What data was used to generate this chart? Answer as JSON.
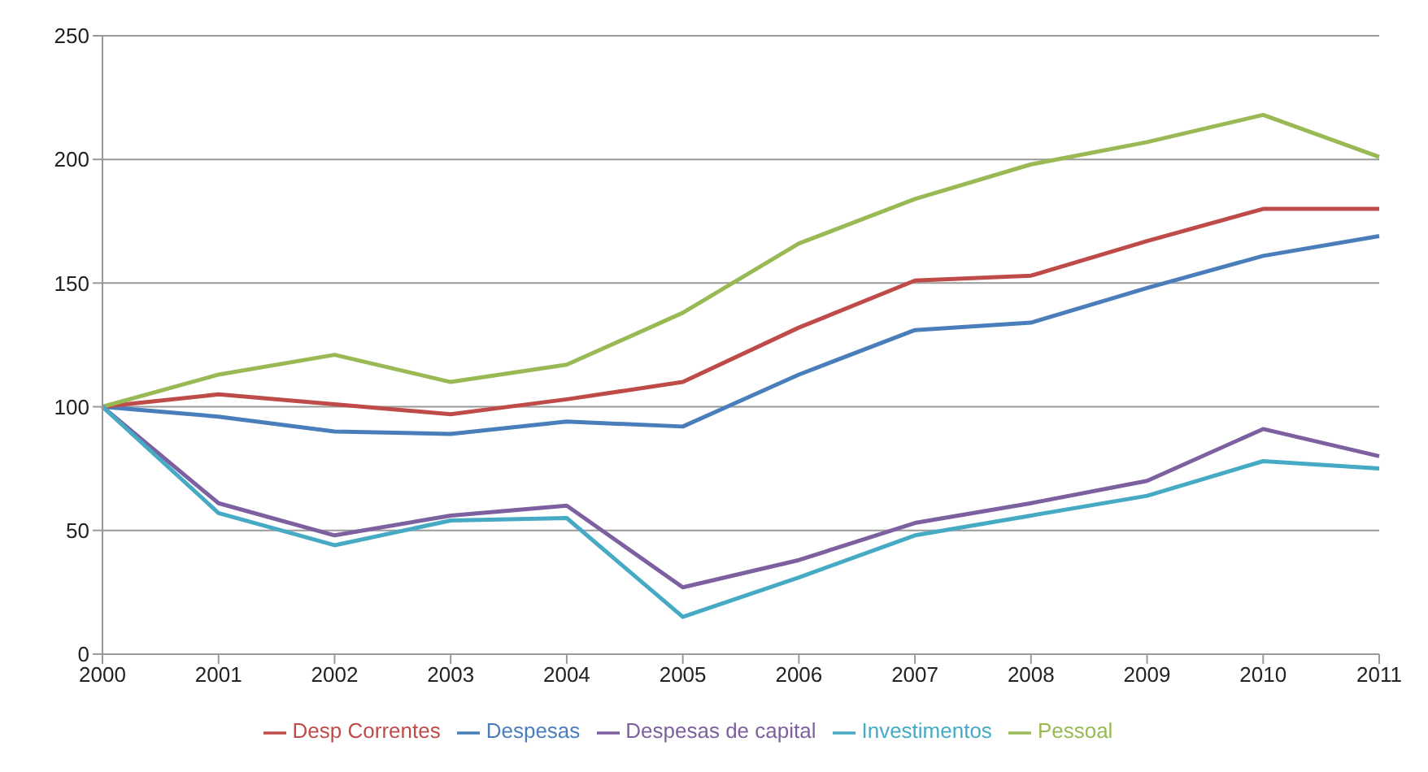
{
  "chart_data": {
    "type": "line",
    "categories": [
      "2000",
      "2001",
      "2002",
      "2003",
      "2004",
      "2005",
      "2006",
      "2007",
      "2008",
      "2009",
      "2010",
      "2011"
    ],
    "series": [
      {
        "name": "Despesas",
        "color": "#4a7ebb",
        "values": [
          100,
          96,
          90,
          89,
          94,
          92,
          113,
          131,
          134,
          148,
          161,
          169
        ]
      },
      {
        "name": "Desp Correntes",
        "color": "#be4b48",
        "values": [
          100,
          105,
          101,
          97,
          103,
          110,
          132,
          151,
          153,
          167,
          180,
          180
        ]
      },
      {
        "name": "Pessoal",
        "color": "#98b954",
        "values": [
          100,
          113,
          121,
          110,
          117,
          138,
          166,
          184,
          198,
          207,
          218,
          201
        ]
      },
      {
        "name": "Despesas de capital",
        "color": "#7d60a0",
        "values": [
          100,
          61,
          48,
          56,
          60,
          27,
          38,
          53,
          61,
          70,
          91,
          80
        ]
      },
      {
        "name": "Investimentos",
        "color": "#46aac5",
        "values": [
          100,
          57,
          44,
          54,
          55,
          15,
          31,
          48,
          56,
          64,
          78,
          75
        ]
      }
    ],
    "ylim": [
      0,
      250
    ],
    "yticks": [
      0,
      50,
      100,
      150,
      200,
      250
    ],
    "grid": "y",
    "legend": "bottom",
    "marker": "none",
    "line_style": "solid"
  }
}
